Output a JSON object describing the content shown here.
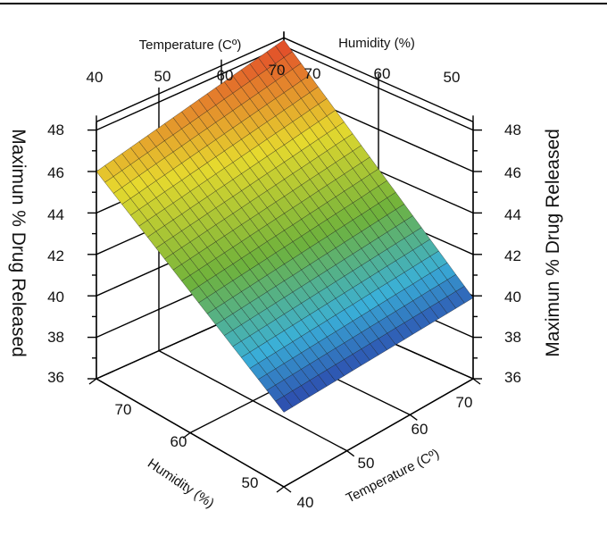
{
  "chart_data": {
    "type": "surface3d",
    "title": "",
    "top_labels": {
      "temperature": "Temperature (Cº)",
      "humidity": "Humidity (%)"
    },
    "z_axis": {
      "label_left": "Maximun % Drug Released",
      "label_right": "Maximun % Drug Released",
      "range": [
        36,
        48
      ],
      "ticks": [
        "36",
        "38",
        "40",
        "42",
        "44",
        "46",
        "48"
      ]
    },
    "temperature_axis": {
      "label": "Temperature (Cº)",
      "range": [
        40,
        70
      ],
      "ticks_top": [
        "40",
        "50",
        "60",
        "70"
      ],
      "ticks_bottom": [
        "40",
        "50",
        "60",
        "70"
      ]
    },
    "humidity_axis": {
      "label": "Humidity (%)",
      "range": [
        50,
        70
      ],
      "ticks_top": [
        "70",
        "60",
        "50"
      ],
      "ticks_bottom": [
        "70",
        "60",
        "50"
      ]
    },
    "surface": {
      "corners": [
        {
          "temperature": 40,
          "humidity": 70,
          "drug_released": 46.0
        },
        {
          "temperature": 70,
          "humidity": 70,
          "drug_released": 48.3
        },
        {
          "temperature": 70,
          "humidity": 50,
          "drug_released": 39.9
        },
        {
          "temperature": 40,
          "humidity": 50,
          "drug_released": 39.6
        }
      ]
    }
  },
  "colors": {
    "low": "#2b3fa8",
    "mid_low": "#3ab0d8",
    "mid": "#6fb23c",
    "mid_high": "#e6d92e",
    "high": "#e2452a",
    "frame": "#000000"
  }
}
